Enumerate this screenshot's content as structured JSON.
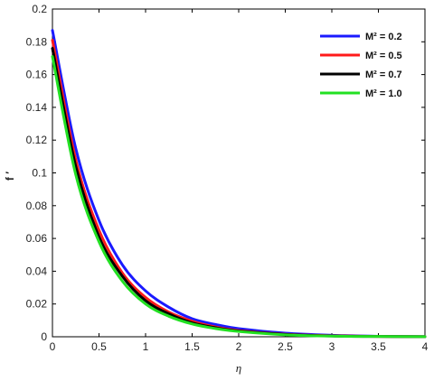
{
  "chart_data": {
    "type": "line",
    "xlabel": "η",
    "ylabel": "f ′",
    "xlim": [
      0,
      4
    ],
    "ylim": [
      0,
      0.2
    ],
    "x_ticks": [
      "0",
      "0.5",
      "1",
      "1.5",
      "2",
      "2.5",
      "3",
      "3.5",
      "4"
    ],
    "y_ticks": [
      "0",
      "0.02",
      "0.04",
      "0.06",
      "0.08",
      "0.1",
      "0.12",
      "0.14",
      "0.16",
      "0.18",
      "0.2"
    ],
    "grid": false,
    "legend_position": "top-right",
    "x": [
      0,
      0.25,
      0.5,
      0.75,
      1.0,
      1.25,
      1.5,
      1.75,
      2.0,
      2.5,
      3.0,
      3.5,
      4.0
    ],
    "series": [
      {
        "name": "M² = 0.2",
        "color": "#1a1aff",
        "y": [
          0.187,
          0.115,
          0.071,
          0.044,
          0.028,
          0.018,
          0.011,
          0.0075,
          0.005,
          0.0022,
          0.0009,
          0.0003,
          0.0001
        ]
      },
      {
        "name": "M² = 0.5",
        "color": "#ff1a1a",
        "y": [
          0.181,
          0.108,
          0.065,
          0.039,
          0.024,
          0.015,
          0.0095,
          0.006,
          0.0038,
          0.0015,
          0.0006,
          0.0002,
          0.0001
        ]
      },
      {
        "name": "M² = 0.7",
        "color": "#000000",
        "y": [
          0.176,
          0.104,
          0.061,
          0.037,
          0.022,
          0.014,
          0.0085,
          0.0055,
          0.0035,
          0.0014,
          0.0005,
          0.0002,
          0.0001
        ]
      },
      {
        "name": "M² = 1.0",
        "color": "#22e022",
        "y": [
          0.171,
          0.099,
          0.058,
          0.034,
          0.02,
          0.0125,
          0.0078,
          0.005,
          0.0032,
          0.0012,
          0.0004,
          0.0002,
          0.0001
        ]
      }
    ]
  }
}
